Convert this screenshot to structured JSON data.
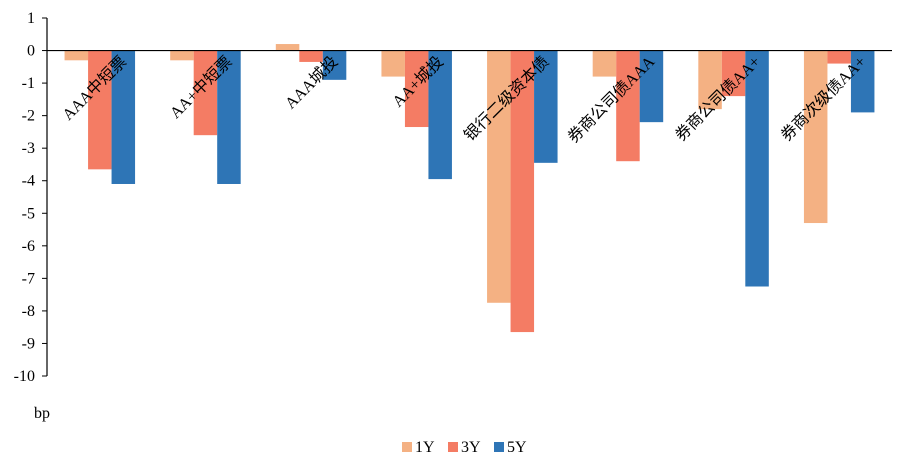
{
  "chart_data": {
    "type": "bar",
    "title": "",
    "xlabel": "",
    "ylabel": "bp",
    "ylim": [
      -10,
      1
    ],
    "yticks": [
      1,
      0,
      -1,
      -2,
      -3,
      -4,
      -5,
      -6,
      -7,
      -8,
      -9,
      -10
    ],
    "categories": [
      "AAA中短票",
      "AA+中短票",
      "AAA城投",
      "AA+城投",
      "银行二级资本债",
      "券商公司债AAA",
      "券商公司债AA+",
      "券商次级债AA+"
    ],
    "series": [
      {
        "name": "1Y",
        "color": "#F4B183",
        "values": [
          -0.3,
          -0.3,
          0.2,
          -0.8,
          -7.75,
          -0.8,
          -1.8,
          -5.3
        ]
      },
      {
        "name": "3Y",
        "color": "#F47C64",
        "values": [
          -3.65,
          -2.6,
          -0.35,
          -2.35,
          -8.65,
          -3.4,
          -1.4,
          -0.4
        ]
      },
      {
        "name": "5Y",
        "color": "#2E75B6",
        "values": [
          -4.1,
          -4.1,
          -0.9,
          -3.95,
          -3.45,
          -2.2,
          -7.25,
          -1.9
        ]
      }
    ],
    "grid": false,
    "legend": "bottom"
  }
}
